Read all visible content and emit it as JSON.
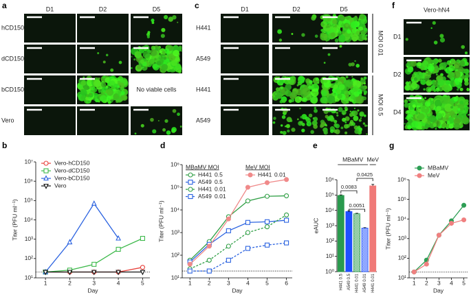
{
  "image_panels": [
    {
      "panel": "a",
      "columns": [
        "D1",
        "D2",
        "D5"
      ],
      "rows": [
        "hCD150",
        "dCD150",
        "bCD150",
        "Vero"
      ],
      "note": "No viable cells"
    },
    {
      "panel": "c",
      "columns": [
        "D1",
        "D2",
        "D5"
      ],
      "rows": [
        "H441",
        "A549",
        "H441",
        "A549"
      ],
      "row_groups": [
        "MOI 0.01",
        "MOI 0.5"
      ]
    },
    {
      "panel": "f",
      "title": "Vero-hN4",
      "rows": [
        "D1",
        "D2",
        "D4"
      ]
    }
  ],
  "chart_data": [
    {
      "panel": "b",
      "type": "line",
      "ylabel": "Titer (PFU ml⁻¹)",
      "xlabel": "Day",
      "x": [
        1,
        2,
        3,
        4,
        5
      ],
      "xlim": [
        0.6,
        5.3
      ],
      "xticks": [
        1,
        2,
        3,
        4,
        5
      ],
      "log_y": true,
      "ylim": [
        10,
        10000000
      ],
      "yticks": [
        {
          "value": 10,
          "label": "10¹"
        },
        {
          "value": 100,
          "label": "10²"
        },
        {
          "value": 1000,
          "label": "10³"
        },
        {
          "value": 10000,
          "label": "10⁴"
        },
        {
          "value": 100000,
          "label": "10⁵"
        },
        {
          "value": 1000000,
          "label": "10⁶"
        },
        {
          "value": 10000000,
          "label": "10⁷"
        }
      ],
      "detection_limit": 20,
      "series": [
        {
          "name": "Vero-hCD150",
          "color": "#e8403a",
          "marker": "circle",
          "filled": false,
          "values": [
            20,
            20,
            20,
            20,
            35
          ]
        },
        {
          "name": "Vero-dCD150",
          "color": "#3cb94a",
          "marker": "square",
          "filled": false,
          "values": [
            20,
            25,
            50,
            300,
            1100
          ]
        },
        {
          "name": "Vero-bCD150",
          "color": "#2a62e0",
          "marker": "triangle",
          "filled": false,
          "values": [
            20,
            700,
            70000,
            1100,
            null
          ]
        },
        {
          "name": "Vero",
          "color": "#111111",
          "marker": "triangle-down",
          "filled": false,
          "values": [
            20,
            20,
            20,
            20,
            20
          ]
        }
      ]
    },
    {
      "panel": "d",
      "type": "line",
      "ylabel": "Titer (PFU ml⁻¹)",
      "xlabel": "Day",
      "x": [
        1,
        2,
        3,
        4,
        5,
        6
      ],
      "xlim": [
        0.6,
        6.3
      ],
      "xticks": [
        1,
        2,
        3,
        4,
        5,
        6
      ],
      "log_y": true,
      "ylim": [
        10,
        1000000
      ],
      "yticks": [
        {
          "value": 10,
          "label": "10¹"
        },
        {
          "value": 100,
          "label": "10²"
        },
        {
          "value": 1000,
          "label": "10³"
        },
        {
          "value": 10000,
          "label": "10⁴"
        },
        {
          "value": 100000,
          "label": "10⁵"
        },
        {
          "value": 1000000,
          "label": "10⁶"
        }
      ],
      "detection_limit": 20,
      "legend_titles": [
        "MBaMV MOI",
        "MeV MOI"
      ],
      "series": [
        {
          "name": "H441",
          "moi": "0.5",
          "legend_group": 0,
          "color": "#2e9e44",
          "marker": "circle",
          "filled": false,
          "dashed": false,
          "values": [
            60,
            400,
            5000,
            25000,
            40000,
            42000
          ]
        },
        {
          "name": "A549",
          "moi": "0.5",
          "legend_group": 0,
          "color": "#2a62e0",
          "marker": "square",
          "filled": false,
          "dashed": false,
          "values": [
            50,
            300,
            1200,
            2800,
            3000,
            3500
          ]
        },
        {
          "name": "H441",
          "moi": "0.01",
          "legend_group": 0,
          "color": "#2e9e44",
          "marker": "circle",
          "filled": false,
          "dashed": true,
          "values": [
            25,
            60,
            250,
            1000,
            1800,
            6000
          ]
        },
        {
          "name": "A549",
          "moi": "0.01",
          "legend_group": 0,
          "color": "#2a62e0",
          "marker": "square",
          "filled": false,
          "dashed": true,
          "values": [
            20,
            20,
            60,
            200,
            280,
            350
          ]
        },
        {
          "name": "H441",
          "moi": "0.01",
          "legend_group": 1,
          "color": "#f08a8a",
          "marker": "circle",
          "filled": true,
          "dashed": false,
          "values": [
            40,
            250,
            4000,
            100000,
            160000,
            220000
          ]
        }
      ]
    },
    {
      "panel": "e",
      "type": "bar",
      "ylabel": "eAUC",
      "categories": [
        "H441 0.5",
        "A549 0.5",
        "H441 0.01",
        "A549 0.01",
        "H441 0.01"
      ],
      "values": [
        95000,
        8500,
        6000,
        700,
        400000
      ],
      "errors": [
        8000,
        1000,
        500,
        50,
        100000
      ],
      "colors": [
        "#2a9a4e",
        "#1f4fff",
        "#2a9a4e",
        "#1f4fff",
        "#f07a78"
      ],
      "patterns": [
        "solid",
        "solid",
        "checker",
        "checker",
        "solid"
      ],
      "log_y": true,
      "ylim": [
        1,
        1000000
      ],
      "yticks": [
        {
          "value": 1,
          "label": "10⁰"
        },
        {
          "value": 10,
          "label": "10¹"
        },
        {
          "value": 100,
          "label": "10²"
        },
        {
          "value": 1000,
          "label": "10³"
        },
        {
          "value": 10000,
          "label": "10⁴"
        },
        {
          "value": 100000,
          "label": "10⁵"
        },
        {
          "value": 1000000,
          "label": "10⁶"
        }
      ],
      "groups": [
        "MBaMV",
        "MeV"
      ],
      "annotations": [
        "0.0083",
        "0.0425",
        "0.0051"
      ]
    },
    {
      "panel": "g",
      "type": "line",
      "ylabel": "Titer (PFU ml⁻¹)",
      "xlabel": "Day",
      "x": [
        1,
        2,
        3,
        4,
        5
      ],
      "xlim": [
        0.6,
        5.3
      ],
      "xticks": [
        1,
        2,
        3,
        4,
        5
      ],
      "log_y": true,
      "ylim": [
        10,
        1000000
      ],
      "yticks": [
        {
          "value": 10,
          "label": "10¹"
        },
        {
          "value": 100,
          "label": "10²"
        },
        {
          "value": 1000,
          "label": "10³"
        },
        {
          "value": 10000,
          "label": "10⁴"
        },
        {
          "value": 100000,
          "label": "10⁵"
        },
        {
          "value": 1000000,
          "label": "10⁶"
        }
      ],
      "detection_limit": 20,
      "series": [
        {
          "name": "MBaMV",
          "color": "#2e9e55",
          "marker": "circle",
          "filled": true,
          "values": [
            20,
            80,
            1500,
            8000,
            50000
          ]
        },
        {
          "name": "MeV",
          "color": "#f08080",
          "marker": "circle",
          "filled": true,
          "values": [
            20,
            50,
            1500,
            6000,
            9000
          ]
        }
      ]
    }
  ]
}
